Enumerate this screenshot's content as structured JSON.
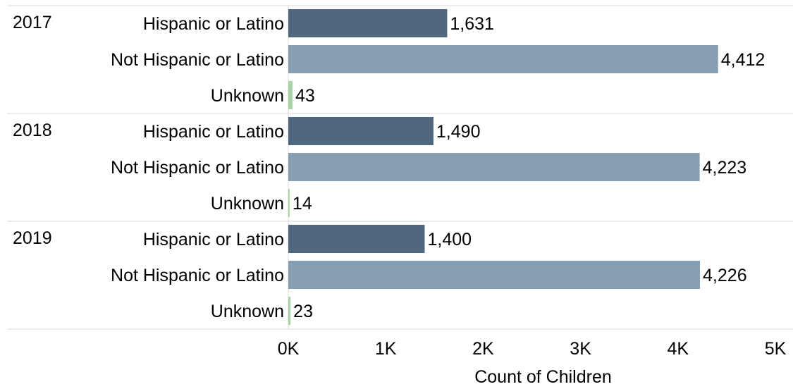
{
  "chart_data": {
    "type": "bar",
    "orientation": "horizontal",
    "xlabel": "Count of Children",
    "xlim": [
      0,
      5000
    ],
    "x_ticks": [
      {
        "value": 0,
        "label": "0K"
      },
      {
        "value": 1000,
        "label": "1K"
      },
      {
        "value": 2000,
        "label": "2K"
      },
      {
        "value": 3000,
        "label": "3K"
      },
      {
        "value": 4000,
        "label": "4K"
      },
      {
        "value": 5000,
        "label": "5K"
      }
    ],
    "groups": [
      {
        "year": "2017",
        "rows": [
          {
            "category": "Hispanic or Latino",
            "value": 1631,
            "label": "1,631"
          },
          {
            "category": "Not Hispanic or Latino",
            "value": 4412,
            "label": "4,412"
          },
          {
            "category": "Unknown",
            "value": 43,
            "label": "43"
          }
        ]
      },
      {
        "year": "2018",
        "rows": [
          {
            "category": "Hispanic or Latino",
            "value": 1490,
            "label": "1,490"
          },
          {
            "category": "Not Hispanic or Latino",
            "value": 4223,
            "label": "4,223"
          },
          {
            "category": "Unknown",
            "value": 14,
            "label": "14"
          }
        ]
      },
      {
        "year": "2019",
        "rows": [
          {
            "category": "Hispanic or Latino",
            "value": 1400,
            "label": "1,400"
          },
          {
            "category": "Not Hispanic or Latino",
            "value": 4226,
            "label": "4,226"
          },
          {
            "category": "Unknown",
            "value": 23,
            "label": "23"
          }
        ]
      }
    ],
    "colors": {
      "Hispanic or Latino": "#4f6880",
      "Not Hispanic or Latino": "#879fb3",
      "Unknown": "#a6d3a8"
    },
    "grid": false,
    "legend": "none"
  }
}
